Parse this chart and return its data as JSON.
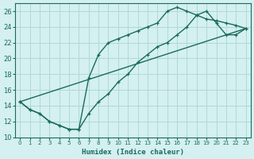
{
  "xlabel": "Humidex (Indice chaleur)",
  "background_color": "#d4f0f0",
  "grid_color": "#b0d8d8",
  "line_color": "#1a6b5a",
  "xlim": [
    -0.5,
    23.5
  ],
  "ylim": [
    10,
    27
  ],
  "yticks": [
    10,
    12,
    14,
    16,
    18,
    20,
    22,
    24,
    26
  ],
  "xticks": [
    0,
    1,
    2,
    3,
    4,
    5,
    6,
    7,
    8,
    9,
    10,
    11,
    12,
    13,
    14,
    15,
    16,
    17,
    18,
    19,
    20,
    21,
    22,
    23
  ],
  "line1_x": [
    0,
    1,
    2,
    3,
    4,
    5,
    6,
    7,
    8,
    9,
    10,
    11,
    12,
    13,
    14,
    15,
    16,
    17,
    18,
    19,
    20,
    21,
    22,
    23
  ],
  "line1_y": [
    14.5,
    13.5,
    13.0,
    12.0,
    11.5,
    11.0,
    11.0,
    17.5,
    20.5,
    22.0,
    22.5,
    23.0,
    23.5,
    24.0,
    24.5,
    26.0,
    26.5,
    26.0,
    25.5,
    25.0,
    24.8,
    24.5,
    24.2,
    23.8
  ],
  "line2_x": [
    0,
    1,
    2,
    3,
    4,
    5,
    6,
    7,
    8,
    9,
    10,
    11,
    12,
    13,
    14,
    15,
    16,
    17,
    18,
    19,
    20,
    21,
    22,
    23
  ],
  "line2_y": [
    14.5,
    13.5,
    13.0,
    12.0,
    11.5,
    11.0,
    11.0,
    13.0,
    14.5,
    15.5,
    17.0,
    18.0,
    19.5,
    20.5,
    21.5,
    22.0,
    23.0,
    24.0,
    25.5,
    26.0,
    24.5,
    23.0,
    23.0,
    23.8
  ],
  "line3_x": [
    0,
    23
  ],
  "line3_y": [
    14.5,
    23.8
  ]
}
